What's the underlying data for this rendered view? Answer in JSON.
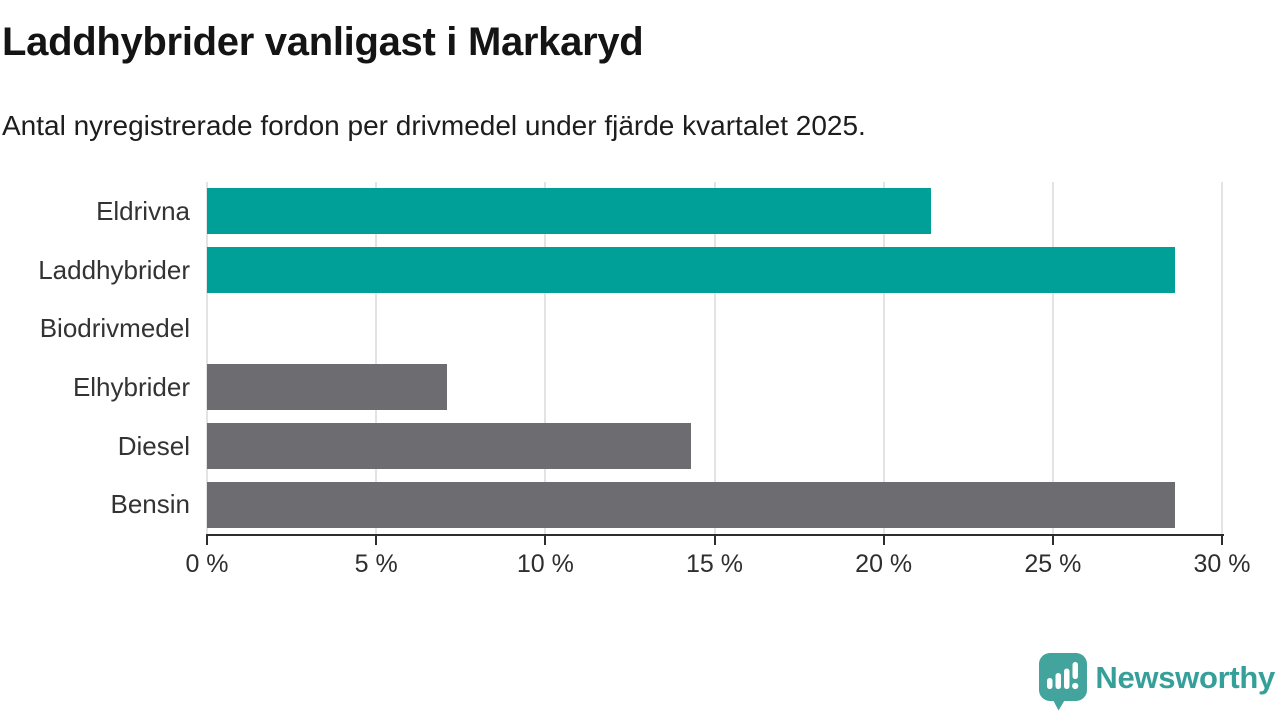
{
  "title": "Laddhybrider vanligast i Markaryd",
  "subtitle": "Antal nyregistrerade fordon per drivmedel under fjärde kvartalet 2025.",
  "chart_data": {
    "type": "bar",
    "orientation": "horizontal",
    "title": "Laddhybrider vanligast i Markaryd",
    "subtitle": "Antal nyregistrerade fordon per drivmedel under fjärde kvartalet 2025.",
    "categories": [
      "Eldrivna",
      "Laddhybrider",
      "Biodrivmedel",
      "Elhybrider",
      "Diesel",
      "Bensin"
    ],
    "values": [
      21.4,
      28.6,
      0,
      7.1,
      14.3,
      28.6
    ],
    "unit": "%",
    "xlim": [
      0,
      30
    ],
    "x_ticks": [
      0,
      5,
      10,
      15,
      20,
      25,
      30
    ],
    "x_tick_labels": [
      "0 %",
      "5 %",
      "10 %",
      "15 %",
      "20 %",
      "25 %",
      "30 %"
    ],
    "bar_colors": [
      "#00a099",
      "#00a099",
      "#6c6c71",
      "#6c6c71",
      "#6c6c71",
      "#6c6c71"
    ],
    "highlight_color": "#00a099",
    "default_color": "#6c6c71",
    "grid": true,
    "gridline_color": "#e3e3e3",
    "legend": "none"
  },
  "footer": {
    "brand": "Newsworthy",
    "brand_color": "#35a09a",
    "logo_icon": "bar-chart-speech-bubble-icon",
    "logo_color": "#43a49d"
  }
}
